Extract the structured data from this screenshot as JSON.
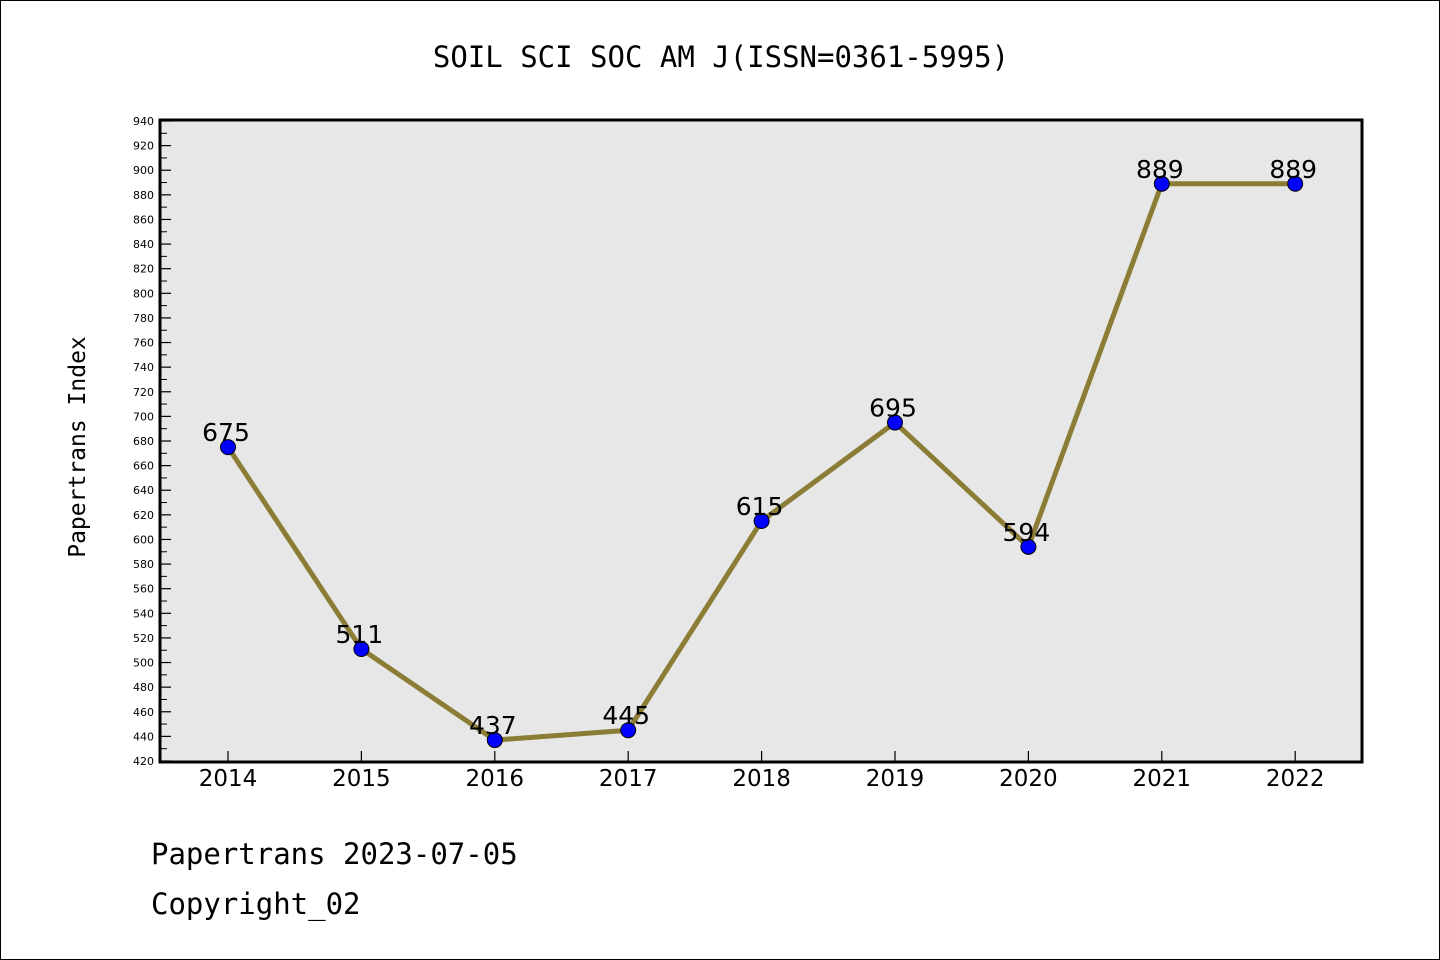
{
  "chart_data": {
    "type": "line",
    "title": "SOIL SCI SOC AM J(ISSN=0361-5995)",
    "ylabel": "Papertrans Index",
    "xlabel": "",
    "categories": [
      "2014",
      "2015",
      "2016",
      "2017",
      "2018",
      "2019",
      "2020",
      "2021",
      "2022"
    ],
    "series": [
      {
        "values": [
          675,
          511,
          437,
          445,
          615,
          695,
          594,
          889,
          889
        ]
      }
    ],
    "data_labels": [
      "675",
      "511",
      "437",
      "445",
      "615",
      "695",
      "594",
      "889",
      "889"
    ],
    "ylim": [
      420,
      940
    ],
    "ytick_step": 20,
    "yticks": [
      "420",
      "440",
      "460",
      "480",
      "500",
      "520",
      "540",
      "560",
      "580",
      "600",
      "620",
      "640",
      "660",
      "680",
      "700",
      "720",
      "740",
      "760",
      "780",
      "800",
      "820",
      "840",
      "860",
      "880",
      "900",
      "920",
      "940"
    ],
    "grid": false,
    "legend": "none",
    "colors": {
      "line": "#8B7D35",
      "marker": "#0000FF",
      "plot_background": "#E7E7E7"
    }
  },
  "footer": {
    "line1": "Papertrans 2023-07-05",
    "line2": "Copyright_02"
  }
}
